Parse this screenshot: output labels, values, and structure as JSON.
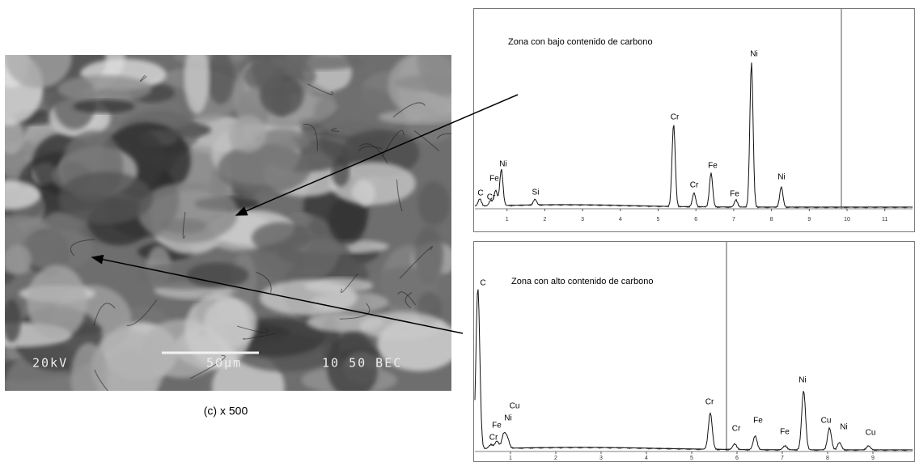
{
  "image": {
    "overlay": [
      "20kV",
      "50µm",
      "10 50 BEC"
    ],
    "caption": "(c) x 500"
  },
  "spectra": [
    {
      "title": "Zona con bajo contenido de carbono",
      "peaks": [
        "C",
        "Cr",
        "Fe",
        "Ni",
        "Si",
        "Cr",
        "Cr",
        "Fe",
        "Fe",
        "Ni",
        "Ni"
      ],
      "ticks": [
        "1",
        "2",
        "3",
        "4",
        "5",
        "6",
        "7",
        "8",
        "9",
        "10",
        "11"
      ]
    },
    {
      "title": "Zona con alto contenido de carbono",
      "peaks": [
        "C",
        "Cr",
        "Fe",
        "Ni",
        "Cu",
        "Cr",
        "Cr",
        "Fe",
        "Fe",
        "Ni",
        "Cu",
        "Ni",
        "Cu"
      ],
      "ticks": [
        "1",
        "2",
        "3",
        "4",
        "5",
        "6",
        "7",
        "8",
        "9"
      ]
    }
  ]
}
